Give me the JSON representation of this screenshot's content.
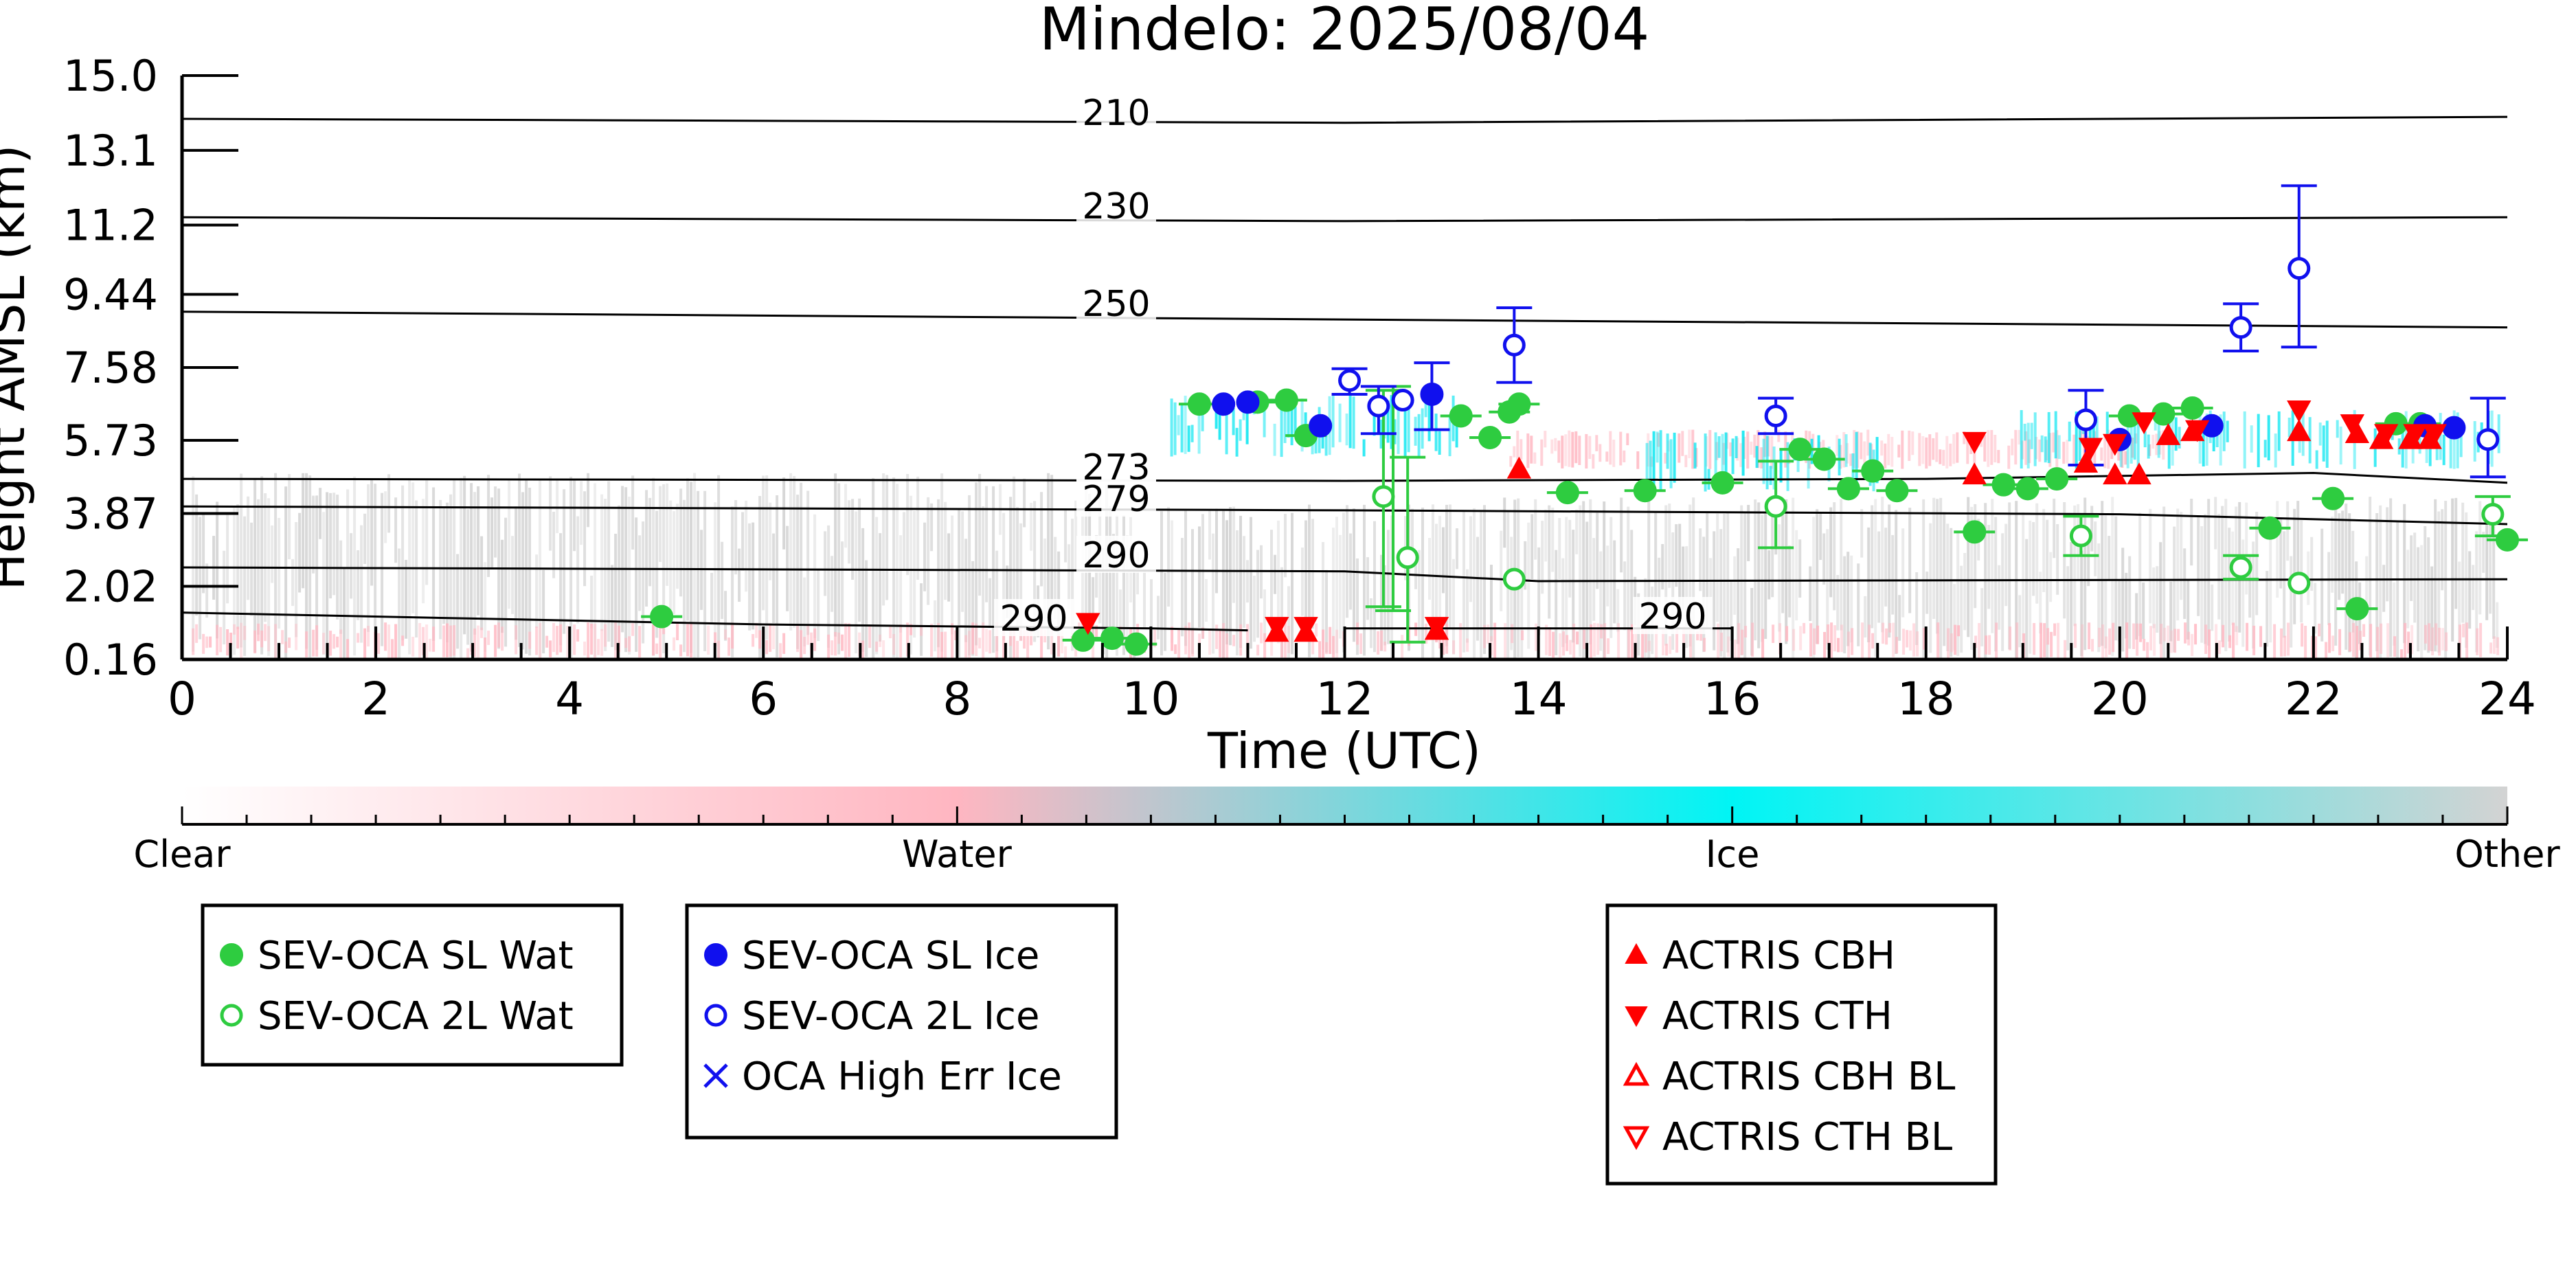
{
  "chart_data": {
    "type": "scatter",
    "title": "Mindelo: 2025/08/04",
    "xlabel": "Time (UTC)",
    "ylabel": "Height AMSL (km)",
    "xlim": [
      0,
      24
    ],
    "ylim": [
      0.16,
      15.0
    ],
    "x_ticks": [
      "0",
      "2",
      "4",
      "6",
      "8",
      "10",
      "12",
      "14",
      "16",
      "18",
      "20",
      "22",
      "24"
    ],
    "y_ticks": [
      "0.16",
      "2.02",
      "3.87",
      "5.73",
      "7.58",
      "9.44",
      "11.2",
      "13.1",
      "15.0"
    ],
    "y_tick_values": [
      0.16,
      2.02,
      3.87,
      5.73,
      7.58,
      9.44,
      11.2,
      13.1,
      15.0
    ],
    "colorbar": {
      "labels": [
        "Clear",
        "Water",
        "Ice",
        "Other"
      ],
      "colors": [
        "#ffffff",
        "#ffb6c1",
        "#00ffff",
        "#d3d3d3"
      ]
    },
    "isotherms": [
      {
        "label": "210",
        "points": [
          [
            0,
            13.9
          ],
          [
            12,
            13.8
          ],
          [
            24,
            13.95
          ]
        ]
      },
      {
        "label": "230",
        "points": [
          [
            0,
            11.4
          ],
          [
            12,
            11.3
          ],
          [
            24,
            11.4
          ]
        ]
      },
      {
        "label": "250",
        "points": [
          [
            0,
            9.0
          ],
          [
            12,
            8.8
          ],
          [
            24,
            8.6
          ]
        ]
      },
      {
        "label": "273",
        "points": [
          [
            0,
            4.75
          ],
          [
            12,
            4.7
          ],
          [
            18,
            4.75
          ],
          [
            22,
            4.9
          ],
          [
            24,
            4.65
          ]
        ]
      },
      {
        "label": "279",
        "points": [
          [
            0,
            4.05
          ],
          [
            12,
            3.95
          ],
          [
            20,
            3.85
          ],
          [
            24,
            3.6
          ]
        ]
      },
      {
        "label": "290",
        "points": [
          [
            0,
            2.5
          ],
          [
            12,
            2.4
          ],
          [
            14,
            2.15
          ],
          [
            24,
            2.2
          ]
        ]
      },
      {
        "label": "290",
        "points": [
          [
            0,
            1.35
          ],
          [
            6,
            1.05
          ],
          [
            10,
            0.95
          ],
          [
            11,
            0.9
          ]
        ]
      },
      {
        "label": "290",
        "points": [
          [
            12,
            0.95
          ],
          [
            16,
            0.95
          ]
        ]
      }
    ],
    "series": [
      {
        "name": "SEV-OCA SL Wat",
        "color": "#2ecc40",
        "marker": "filled-circle",
        "points": [
          [
            4.95,
            1.25
          ],
          [
            9.3,
            0.65
          ],
          [
            9.6,
            0.7
          ],
          [
            9.85,
            0.55
          ],
          [
            10.5,
            6.65
          ],
          [
            11.1,
            6.7
          ],
          [
            11.4,
            6.75
          ],
          [
            11.6,
            5.85
          ],
          [
            13.2,
            6.35
          ],
          [
            13.5,
            5.8
          ],
          [
            13.7,
            6.45
          ],
          [
            13.8,
            6.65
          ],
          [
            14.3,
            4.4
          ],
          [
            15.1,
            4.45
          ],
          [
            15.9,
            4.65
          ],
          [
            16.7,
            5.5
          ],
          [
            16.95,
            5.25
          ],
          [
            17.2,
            4.5
          ],
          [
            17.45,
            4.95
          ],
          [
            17.7,
            4.45
          ],
          [
            18.5,
            3.4
          ],
          [
            18.8,
            4.6
          ],
          [
            19.05,
            4.5
          ],
          [
            19.35,
            4.75
          ],
          [
            20.1,
            6.35
          ],
          [
            20.45,
            6.4
          ],
          [
            20.75,
            6.55
          ],
          [
            21.55,
            3.5
          ],
          [
            22.2,
            4.25
          ],
          [
            22.45,
            1.45
          ],
          [
            22.85,
            6.15
          ],
          [
            23.1,
            6.15
          ],
          [
            24.0,
            3.2
          ]
        ]
      },
      {
        "name": "SEV-OCA 2L Wat",
        "color": "#2ecc40",
        "marker": "open-circle",
        "points": [
          [
            12.4,
            4.3
          ],
          [
            12.65,
            2.75
          ],
          [
            13.75,
            2.2
          ],
          [
            16.45,
            4.05
          ],
          [
            19.6,
            3.3
          ],
          [
            21.25,
            2.5
          ],
          [
            21.85,
            2.1
          ],
          [
            23.85,
            3.85
          ]
        ]
      },
      {
        "name": "SEV-OCA SL Ice",
        "color": "#1010ee",
        "marker": "filled-circle",
        "points": [
          [
            10.75,
            6.65
          ],
          [
            11.0,
            6.7
          ],
          [
            11.75,
            6.1
          ],
          [
            12.9,
            6.9
          ],
          [
            20.0,
            5.75
          ],
          [
            20.95,
            6.1
          ],
          [
            23.15,
            6.1
          ],
          [
            23.45,
            6.05
          ]
        ]
      },
      {
        "name": "SEV-OCA 2L Ice",
        "color": "#1010ee",
        "marker": "open-circle",
        "points": [
          [
            12.05,
            7.25
          ],
          [
            12.35,
            6.6
          ],
          [
            12.6,
            6.75
          ],
          [
            13.75,
            8.15
          ],
          [
            16.45,
            6.35
          ],
          [
            19.65,
            6.25
          ],
          [
            21.25,
            8.6
          ],
          [
            21.85,
            10.1
          ],
          [
            23.8,
            5.75
          ]
        ]
      },
      {
        "name": "OCA High Err Ice",
        "color": "#1010ee",
        "marker": "x",
        "points": []
      },
      {
        "name": "ACTRIS CBH",
        "color": "#ff0000",
        "marker": "triangle-up",
        "points": [
          [
            11.3,
            0.85
          ],
          [
            11.6,
            0.85
          ],
          [
            12.95,
            0.9
          ],
          [
            13.8,
            5.0
          ],
          [
            18.5,
            4.85
          ],
          [
            19.65,
            5.15
          ],
          [
            19.95,
            4.85
          ],
          [
            20.2,
            4.85
          ],
          [
            20.5,
            5.85
          ],
          [
            20.75,
            5.95
          ],
          [
            21.85,
            5.95
          ],
          [
            22.45,
            5.9
          ],
          [
            22.7,
            5.75
          ],
          [
            23.0,
            5.75
          ],
          [
            23.2,
            5.75
          ]
        ]
      },
      {
        "name": "ACTRIS CTH",
        "color": "#ff0000",
        "marker": "triangle-down",
        "points": [
          [
            9.35,
            1.1
          ],
          [
            11.3,
            1.0
          ],
          [
            11.6,
            1.0
          ],
          [
            12.95,
            1.0
          ],
          [
            18.5,
            5.7
          ],
          [
            19.7,
            5.55
          ],
          [
            19.95,
            5.65
          ],
          [
            20.25,
            6.2
          ],
          [
            20.8,
            6.0
          ],
          [
            21.85,
            6.5
          ],
          [
            22.4,
            6.15
          ],
          [
            22.75,
            5.9
          ],
          [
            23.05,
            5.9
          ],
          [
            23.25,
            5.9
          ]
        ]
      },
      {
        "name": "ACTRIS CBH BL",
        "color": "#ff0000",
        "marker": "open-triangle-up",
        "points": []
      },
      {
        "name": "ACTRIS CTH BL",
        "color": "#ff0000",
        "marker": "open-triangle-down",
        "points": []
      }
    ],
    "error_bars": [
      {
        "series": 0,
        "x": 12.5,
        "y": 4.4,
        "low": 1.4,
        "high": 7.1
      },
      {
        "series": 1,
        "x": 12.4,
        "y": 4.3,
        "low": 1.5,
        "high": 7.0
      },
      {
        "series": 1,
        "x": 12.65,
        "y": 2.75,
        "low": 0.6,
        "high": 5.3
      },
      {
        "series": 1,
        "x": 16.45,
        "y": 4.05,
        "low": 3.0,
        "high": 5.2
      },
      {
        "series": 1,
        "x": 19.6,
        "y": 3.3,
        "low": 2.8,
        "high": 3.8
      },
      {
        "series": 1,
        "x": 21.25,
        "y": 2.5,
        "low": 2.2,
        "high": 2.8
      },
      {
        "series": 1,
        "x": 23.85,
        "y": 3.85,
        "low": 3.3,
        "high": 4.3
      },
      {
        "series": 2,
        "x": 12.9,
        "y": 6.9,
        "low": 6.0,
        "high": 7.7
      },
      {
        "series": 3,
        "x": 12.05,
        "y": 7.25,
        "low": 6.9,
        "high": 7.55
      },
      {
        "series": 3,
        "x": 12.35,
        "y": 6.6,
        "low": 5.9,
        "high": 7.1
      },
      {
        "series": 3,
        "x": 13.75,
        "y": 8.15,
        "low": 7.2,
        "high": 9.1
      },
      {
        "series": 3,
        "x": 16.45,
        "y": 6.35,
        "low": 5.9,
        "high": 6.8
      },
      {
        "series": 3,
        "x": 19.65,
        "y": 6.25,
        "low": 5.1,
        "high": 7.0
      },
      {
        "series": 3,
        "x": 21.25,
        "y": 8.6,
        "low": 8.0,
        "high": 9.2
      },
      {
        "series": 3,
        "x": 21.85,
        "y": 10.1,
        "low": 8.1,
        "high": 12.2
      },
      {
        "series": 3,
        "x": 23.8,
        "y": 5.75,
        "low": 4.8,
        "high": 6.8
      }
    ],
    "background_regions": [
      {
        "class": "Other",
        "color": "#cfcfcf",
        "x": [
          0.1,
          9.6
        ],
        "y": [
          0.16,
          4.9
        ],
        "density": 0.55
      },
      {
        "class": "Other",
        "color": "#cfcfcf",
        "x": [
          9.6,
          13.6
        ],
        "y": [
          0.16,
          4.1
        ],
        "density": 0.45
      },
      {
        "class": "Other",
        "color": "#cfcfcf",
        "x": [
          13.6,
          23.9
        ],
        "y": [
          0.16,
          4.3
        ],
        "density": 0.55
      },
      {
        "class": "Water",
        "color": "#ffb6c1",
        "x": [
          0.1,
          23.9
        ],
        "y": [
          0.16,
          1.1
        ],
        "density": 0.25
      },
      {
        "class": "Water",
        "color": "#ffb6c1",
        "x": [
          13.7,
          20.5
        ],
        "y": [
          5.0,
          6.0
        ],
        "density": 0.35
      },
      {
        "class": "Ice",
        "color": "#00e5f0",
        "x": [
          10.2,
          13.2
        ],
        "y": [
          5.3,
          6.9
        ],
        "density": 0.4
      },
      {
        "class": "Ice",
        "color": "#00e5f0",
        "x": [
          15.0,
          17.5
        ],
        "y": [
          4.4,
          6.0
        ],
        "density": 0.3
      },
      {
        "class": "Ice",
        "color": "#00e5f0",
        "x": [
          18.9,
          23.9
        ],
        "y": [
          5.0,
          6.5
        ],
        "density": 0.3
      }
    ]
  }
}
